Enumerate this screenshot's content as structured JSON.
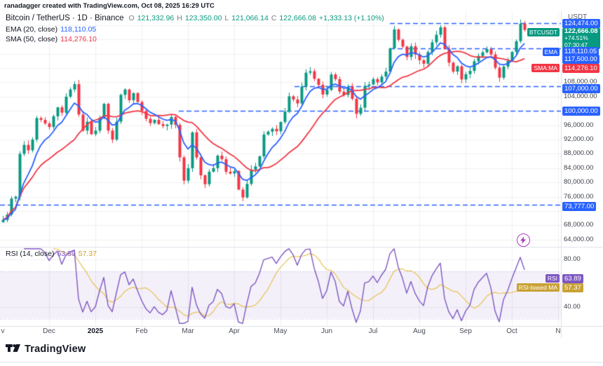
{
  "meta": {
    "attribution": "ranadagger created with TradingView.com, Oct 08, 2025 16:29 UTC"
  },
  "legend": {
    "title": "Bitcoin / TetherUS · 1D · Binance",
    "o_label": "O",
    "o": "121,332.96",
    "h_label": "H",
    "h": "123,350.00",
    "l_label": "L",
    "l": "121,066.14",
    "c_label": "C",
    "c": "122,666.08",
    "change": "+1,333.13 (+1.10%)",
    "ema_label": "EMA (20, close)",
    "ema_value": "118,110.05",
    "sma_label": "SMA (50, close)",
    "sma_value": "114,276.10",
    "rsi_label": "RSI (14, close)",
    "rsi_value": "63.89",
    "rsi_ma_value": "57.37"
  },
  "colors": {
    "up": "#089981",
    "down": "#F23645",
    "ema": "#2962FF",
    "sma": "#F23645",
    "level": "#2962FF",
    "rsi": "#7E57C2",
    "rsi_ma": "#E8C152",
    "grid": "rgba(42,46,57,0.07)",
    "boost": "#A93ABF",
    "last_badge": "#089981"
  },
  "price_axis": {
    "unit": "USDT",
    "ticks": [
      {
        "price": 108000,
        "label": "108,000.00"
      },
      {
        "price": 104000,
        "label": "104,000.00"
      },
      {
        "price": 96000,
        "label": "96,000.00"
      },
      {
        "price": 92000,
        "label": "92,000.00"
      },
      {
        "price": 88000,
        "label": "88,000.00"
      },
      {
        "price": 84000,
        "label": "84,000.00"
      },
      {
        "price": 80000,
        "label": "80,000.00"
      },
      {
        "price": 76000,
        "label": "76,000.00"
      },
      {
        "price": 68000,
        "label": "68,000.00"
      },
      {
        "price": 64000,
        "label": "64,000.00"
      }
    ],
    "badges": [
      {
        "price": 124474,
        "label": "124,474.00",
        "color": "#2962FF",
        "name": "level-124474-badge"
      },
      {
        "price": 122666.08,
        "lines": [
          "122,666.08",
          "+74.51%",
          "07:30:47"
        ],
        "tag": "BTCUSDT",
        "color": "#089981",
        "name": "last-price-badge"
      },
      {
        "price": 118110.05,
        "label": "118,110.05",
        "tag": "EMA",
        "color": "#2962FF",
        "name": "ema-value-badge"
      },
      {
        "price": 117500,
        "label": "117,500.00",
        "color": "#2962FF",
        "name": "level-117500-badge"
      },
      {
        "price": 114276.1,
        "label": "114,276.10",
        "tag": "SMA:MA",
        "color": "#F23645",
        "name": "sma-value-badge"
      },
      {
        "price": 107000,
        "label": "107,000.00",
        "color": "#2962FF",
        "name": "level-107000-badge"
      },
      {
        "price": 100000,
        "label": "100,000.00",
        "color": "#2962FF",
        "name": "level-100000-badge"
      },
      {
        "price": 73777,
        "label": "73,777.00",
        "color": "#2962FF",
        "name": "level-73777-badge"
      }
    ]
  },
  "rsi_axis": {
    "ticks": [
      {
        "value": 80,
        "label": "80.00"
      },
      {
        "value": 40,
        "label": "40.00"
      }
    ],
    "badges": [
      {
        "value": 63.89,
        "label": "63.89",
        "tag": "RSI",
        "color": "#7E57C2",
        "name": "rsi-value-badge"
      },
      {
        "value": 57.37,
        "label": "57.37",
        "tag": "RSI-based MA",
        "color": "#C9A235",
        "name": "rsi-ma-value-badge"
      }
    ]
  },
  "time_axis": {
    "labels": [
      {
        "text": "v",
        "i": 0
      },
      {
        "text": "Dec",
        "i": 11
      },
      {
        "text": "2025",
        "i": 22,
        "bold": true
      },
      {
        "text": "Feb",
        "i": 33
      },
      {
        "text": "Mar",
        "i": 44
      },
      {
        "text": "Apr",
        "i": 55
      },
      {
        "text": "May",
        "i": 66
      },
      {
        "text": "Jun",
        "i": 77
      },
      {
        "text": "Jul",
        "i": 88
      },
      {
        "text": "Aug",
        "i": 99
      },
      {
        "text": "Sep",
        "i": 110
      },
      {
        "text": "Oct",
        "i": 121
      },
      {
        "text": "N",
        "i": 132
      }
    ]
  },
  "levels": [
    {
      "price": 124474,
      "x_from": 556
    },
    {
      "price": 117500,
      "x_from": 556
    },
    {
      "price": 107000,
      "x_from": 420
    },
    {
      "price": 100000,
      "x_from": 255
    },
    {
      "price": 73777,
      "x_from": 0
    }
  ],
  "footer": {
    "brand": "TradingView"
  },
  "chart_data": {
    "type": "candlestick",
    "symbol": "BTCUSDT",
    "exchange": "Binance",
    "timeframe": "1D",
    "x_range": {
      "start": "2024-11",
      "end": "2025-10-08"
    },
    "y_range": [
      62000,
      127500
    ],
    "last_candle": {
      "open": 121332.96,
      "high": 123350.0,
      "low": 121066.14,
      "close": 122666.08,
      "change": 1333.13,
      "change_pct": 1.1
    },
    "indicators": {
      "ema20": 118110.05,
      "sma50": 114276.1,
      "rsi14": 63.89,
      "rsi_ma": 57.37
    },
    "support_resistance_levels": [
      124474,
      117500,
      107000,
      100000,
      73777
    ],
    "rsi_pane": {
      "visible_ticks": [
        80,
        40
      ],
      "band": [
        30,
        70
      ]
    },
    "closes": [
      69500,
      71000,
      75500,
      76000,
      88000,
      90500,
      89000,
      92000,
      98000,
      97500,
      96500,
      95500,
      98500,
      101000,
      99500,
      104000,
      106000,
      107500,
      99000,
      94500,
      97000,
      93500,
      94500,
      98000,
      102000,
      94500,
      92000,
      97000,
      104500,
      106000,
      103000,
      105000,
      102500,
      100000,
      97800,
      96600,
      97500,
      96300,
      95800,
      96200,
      98300,
      96100,
      87000,
      80500,
      84000,
      94000,
      87000,
      82000,
      79500,
      83000,
      84000,
      87500,
      86500,
      83000,
      82500,
      83200,
      78000,
      75800,
      79600,
      83600,
      84500,
      87300,
      93400,
      94200,
      95000,
      94300,
      96900,
      99800,
      104100,
      103200,
      102100,
      106800,
      110700,
      111100,
      109000,
      107300,
      104600,
      105900,
      110200,
      108900,
      105400,
      104500,
      106800,
      103400,
      99200,
      100900,
      107000,
      107400,
      108900,
      108000,
      109600,
      111000,
      117500,
      122800,
      119900,
      118000,
      115100,
      118100,
      115800,
      114200,
      113200,
      116500,
      119200,
      121300,
      123400,
      117400,
      113500,
      111000,
      112500,
      108800,
      110300,
      111200,
      113900,
      115400,
      116400,
      117300,
      115800,
      112100,
      109300,
      112400,
      114000,
      116500,
      119500,
      124400,
      122666
    ]
  }
}
